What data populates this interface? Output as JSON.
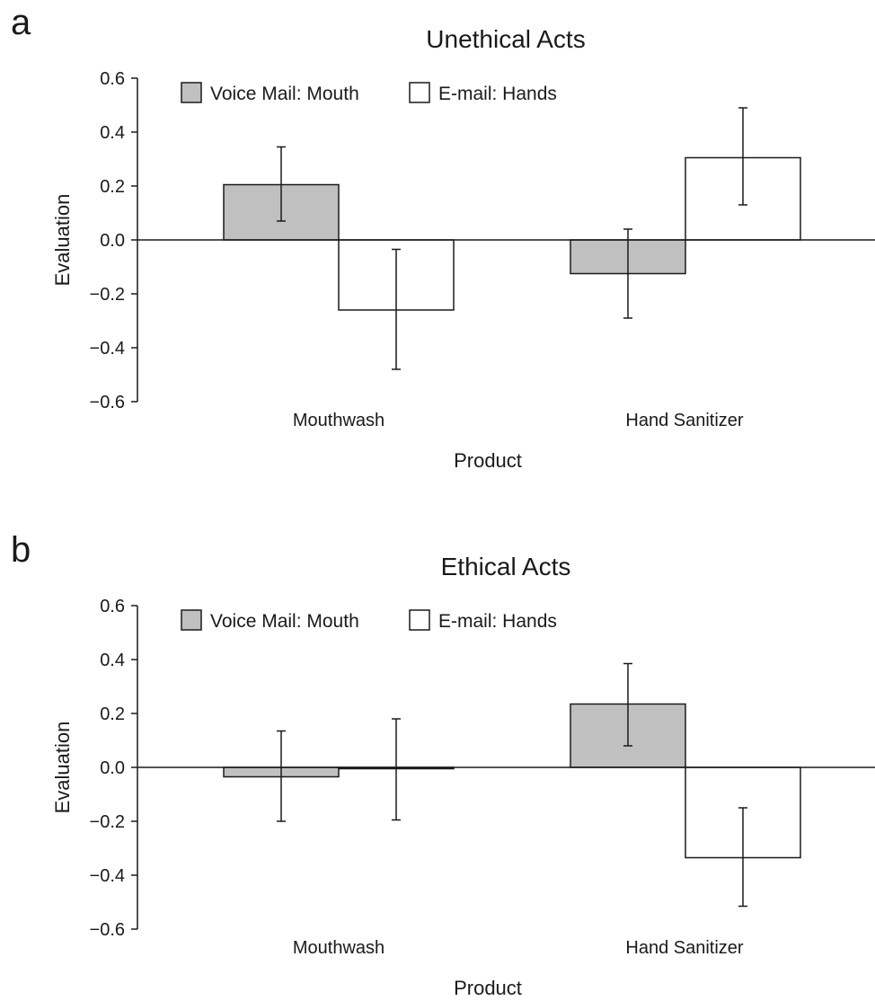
{
  "colors": {
    "voice_mail_mouth": "#c0c0c0",
    "email_hands": "#ffffff",
    "stroke": "#1a1a1a"
  },
  "chart_data": [
    {
      "panel": "a",
      "type": "bar",
      "title": "Unethical Acts",
      "xlabel": "Product",
      "ylabel": "Evaluation",
      "ylim": [
        -0.6,
        0.6
      ],
      "yticks": [
        "0.6",
        "0.4",
        "0.2",
        "0.0",
        "−0.2",
        "−0.4",
        "−0.6"
      ],
      "categories": [
        "Mouthwash",
        "Hand Sanitizer"
      ],
      "legend_position": "top-left",
      "series": [
        {
          "name": "Voice Mail: Mouth",
          "values": [
            0.205,
            -0.125
          ],
          "error_low": [
            0.07,
            -0.29
          ],
          "error_high": [
            0.345,
            0.04
          ]
        },
        {
          "name": "E-mail: Hands",
          "values": [
            -0.26,
            0.305
          ],
          "error_low": [
            -0.48,
            0.13
          ],
          "error_high": [
            -0.035,
            0.49
          ]
        }
      ]
    },
    {
      "panel": "b",
      "type": "bar",
      "title": "Ethical Acts",
      "xlabel": "Product",
      "ylabel": "Evaluation",
      "ylim": [
        -0.6,
        0.6
      ],
      "yticks": [
        "0.6",
        "0.4",
        "0.2",
        "0.0",
        "−0.2",
        "−0.4",
        "−0.6"
      ],
      "categories": [
        "Mouthwash",
        "Hand Sanitizer"
      ],
      "legend_position": "top-left",
      "series": [
        {
          "name": "Voice Mail: Mouth",
          "values": [
            -0.035,
            0.235
          ],
          "error_low": [
            -0.2,
            0.08
          ],
          "error_high": [
            0.135,
            0.385
          ]
        },
        {
          "name": "E-mail: Hands",
          "values": [
            -0.005,
            -0.335
          ],
          "error_low": [
            -0.195,
            -0.515
          ],
          "error_high": [
            0.18,
            -0.15
          ]
        }
      ]
    }
  ]
}
